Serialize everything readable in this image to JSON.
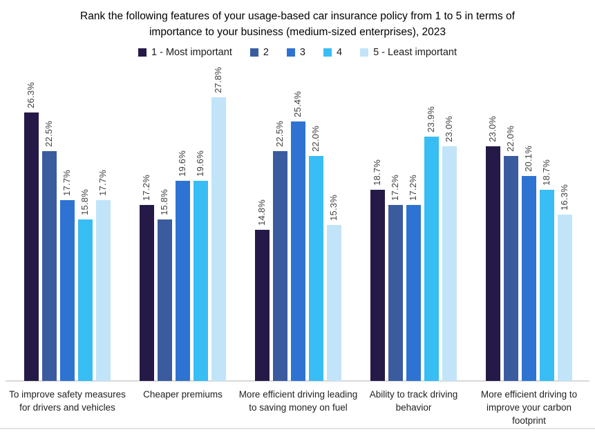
{
  "title": {
    "line1": "Rank the following features of your usage-based car insurance policy from 1 to 5 in terms of",
    "line2": "importance to your business (medium-sized enterprises), 2023"
  },
  "legend": [
    {
      "label": "1 - Most important",
      "color": "#251a47"
    },
    {
      "label": "2",
      "color": "#3a5c9f"
    },
    {
      "label": "3",
      "color": "#2e73d2"
    },
    {
      "label": "4",
      "color": "#38bdf4"
    },
    {
      "label": "5 - Least important",
      "color": "#c1e4f9"
    }
  ],
  "chart_data": {
    "type": "bar",
    "title": "Rank the following features of your usage-based car insurance policy from 1 to 5 in terms of importance to your business (medium-sized enterprises), 2023",
    "categories": [
      "To improve safety measures for drivers and vehicles",
      "Cheaper premiums",
      "More efficient driving leading to saving money on fuel",
      "Ability to track driving behavior",
      "More efficient driving to improve your carbon footprint"
    ],
    "series": [
      {
        "name": "1 - Most important",
        "color": "#251a47",
        "values": [
          26.3,
          17.2,
          14.8,
          18.7,
          23.0
        ]
      },
      {
        "name": "2",
        "color": "#3a5c9f",
        "values": [
          22.5,
          15.8,
          22.5,
          17.2,
          22.0
        ]
      },
      {
        "name": "3",
        "color": "#2e73d2",
        "values": [
          17.7,
          19.6,
          25.4,
          17.2,
          20.1
        ]
      },
      {
        "name": "4",
        "color": "#38bdf4",
        "values": [
          15.8,
          19.6,
          22.0,
          23.9,
          18.7
        ]
      },
      {
        "name": "5 - Least important",
        "color": "#c1e4f9",
        "values": [
          17.7,
          27.8,
          15.3,
          23.0,
          16.3
        ]
      }
    ],
    "value_label_suffix": "%",
    "ylim": [
      0,
      28
    ],
    "grid": false,
    "legend_position": "top",
    "axis_line_color": "#d9d9d9"
  }
}
